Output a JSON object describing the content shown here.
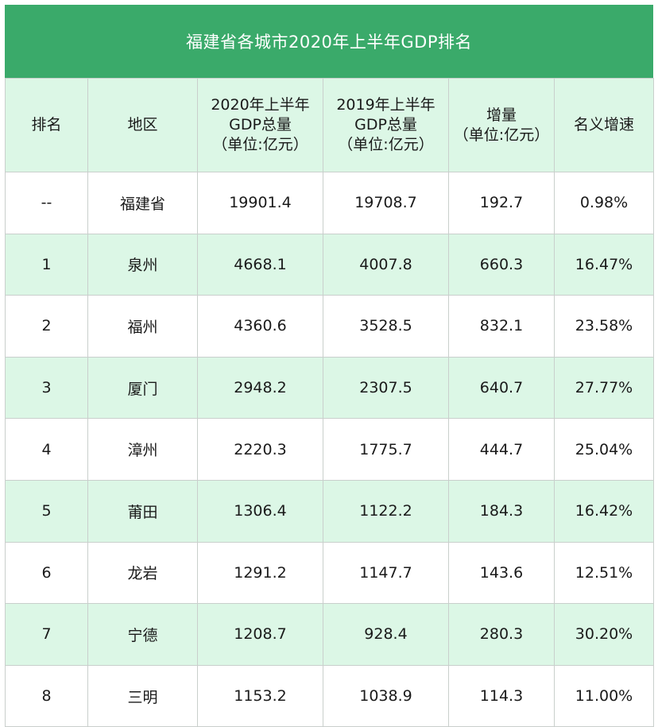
{
  "title": "福建省各城市2020年上半年GDP排名",
  "colors": {
    "title_bg": "#3aaa6a",
    "header_bg": "#dcf7e6",
    "stripe_bg": "#dcf7e6",
    "row_bg": "#ffffff"
  },
  "headers": {
    "rank": "排名",
    "region": "地区",
    "gdp2020": [
      "2020年上半年",
      "GDP总量",
      "（单位:亿元）"
    ],
    "gdp2019": [
      "2019年上半年",
      "GDP总量",
      "（单位:亿元）"
    ],
    "increase": [
      "增量",
      "（单位:亿元）"
    ],
    "growth": "名义增速"
  },
  "rows": [
    {
      "rank": "--",
      "region": "福建省",
      "gdp2020": "19901.4",
      "gdp2019": "19708.7",
      "increase": "192.7",
      "growth": "0.98%"
    },
    {
      "rank": "1",
      "region": "泉州",
      "gdp2020": "4668.1",
      "gdp2019": "4007.8",
      "increase": "660.3",
      "growth": "16.47%"
    },
    {
      "rank": "2",
      "region": "福州",
      "gdp2020": "4360.6",
      "gdp2019": "3528.5",
      "increase": "832.1",
      "growth": "23.58%"
    },
    {
      "rank": "3",
      "region": "厦门",
      "gdp2020": "2948.2",
      "gdp2019": "2307.5",
      "increase": "640.7",
      "growth": "27.77%"
    },
    {
      "rank": "4",
      "region": "漳州",
      "gdp2020": "2220.3",
      "gdp2019": "1775.7",
      "increase": "444.7",
      "growth": "25.04%"
    },
    {
      "rank": "5",
      "region": "莆田",
      "gdp2020": "1306.4",
      "gdp2019": "1122.2",
      "increase": "184.3",
      "growth": "16.42%"
    },
    {
      "rank": "6",
      "region": "龙岩",
      "gdp2020": "1291.2",
      "gdp2019": "1147.7",
      "increase": "143.6",
      "growth": "12.51%"
    },
    {
      "rank": "7",
      "region": "宁德",
      "gdp2020": "1208.7",
      "gdp2019": "928.4",
      "increase": "280.3",
      "growth": "30.20%"
    },
    {
      "rank": "8",
      "region": "三明",
      "gdp2020": "1153.2",
      "gdp2019": "1038.9",
      "increase": "114.3",
      "growth": "11.00%"
    }
  ]
}
